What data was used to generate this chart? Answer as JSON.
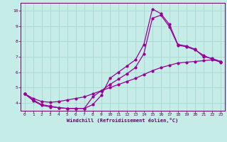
{
  "title": "",
  "xlabel": "Windchill (Refroidissement éolien,°C)",
  "bg_color": "#c5ece6",
  "line_color": "#990099",
  "grid_color": "#a8d8d0",
  "axis_color": "#660066",
  "xlim": [
    -0.5,
    23.5
  ],
  "ylim": [
    3.5,
    10.5
  ],
  "xticks": [
    0,
    1,
    2,
    3,
    4,
    5,
    6,
    7,
    8,
    9,
    10,
    11,
    12,
    13,
    14,
    15,
    16,
    17,
    18,
    19,
    20,
    21,
    22,
    23
  ],
  "yticks": [
    4,
    5,
    6,
    7,
    8,
    9,
    10
  ],
  "line1_x": [
    0,
    1,
    2,
    3,
    4,
    5,
    6,
    7,
    8,
    9,
    10,
    11,
    12,
    13,
    14,
    15,
    16,
    17,
    18,
    19,
    20,
    21,
    22,
    23
  ],
  "line1_y": [
    4.6,
    4.2,
    3.9,
    3.8,
    3.7,
    3.65,
    3.65,
    3.65,
    3.9,
    4.5,
    5.6,
    6.0,
    6.4,
    6.8,
    7.8,
    10.1,
    9.8,
    9.1,
    7.8,
    7.7,
    7.5,
    7.0,
    6.9,
    6.7
  ],
  "line2_x": [
    0,
    1,
    2,
    3,
    4,
    5,
    6,
    7,
    8,
    9,
    10,
    11,
    12,
    13,
    14,
    15,
    16,
    17,
    18,
    19,
    20,
    21,
    22,
    23
  ],
  "line2_y": [
    4.6,
    4.15,
    3.85,
    3.75,
    3.7,
    3.65,
    3.65,
    3.65,
    4.4,
    4.8,
    5.2,
    5.55,
    5.9,
    6.3,
    7.2,
    9.5,
    9.7,
    8.95,
    7.75,
    7.65,
    7.45,
    7.1,
    6.85,
    6.65
  ],
  "line3_x": [
    0,
    1,
    2,
    3,
    4,
    5,
    6,
    7,
    8,
    9,
    10,
    11,
    12,
    13,
    14,
    15,
    16,
    17,
    18,
    19,
    20,
    21,
    22,
    23
  ],
  "line3_y": [
    4.6,
    4.3,
    4.1,
    4.05,
    4.1,
    4.2,
    4.3,
    4.4,
    4.6,
    4.8,
    5.0,
    5.2,
    5.4,
    5.6,
    5.85,
    6.1,
    6.3,
    6.45,
    6.6,
    6.65,
    6.7,
    6.75,
    6.8,
    6.7
  ]
}
